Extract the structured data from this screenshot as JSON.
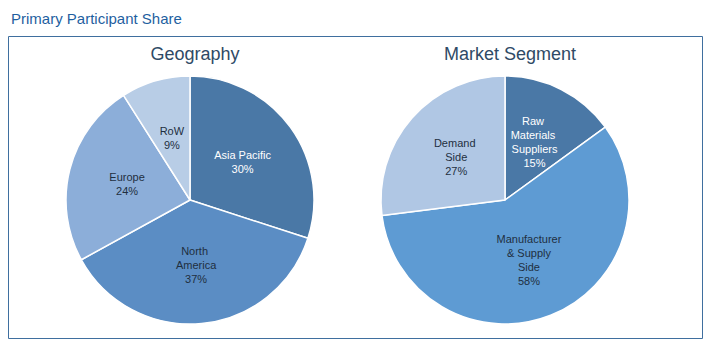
{
  "title": "Primary Participant Share",
  "chart_data": [
    {
      "type": "pie",
      "title": "Geography",
      "categories": [
        "Asia Pacific",
        "North America",
        "Europe",
        "RoW"
      ],
      "values": [
        30,
        37,
        24,
        9
      ],
      "value_labels": [
        "30%",
        "37%",
        "24%",
        "9%"
      ],
      "colors": [
        "#4a78a6",
        "#5b8dc4",
        "#8caed9",
        "#b8cde6"
      ],
      "data_labels": true
    },
    {
      "type": "pie",
      "title": "Market Segment",
      "categories": [
        "Raw Materials Suppliers",
        "Manufacturer & Supply Side",
        "Demand Side"
      ],
      "values": [
        15,
        58,
        27
      ],
      "value_labels": [
        "15%",
        "58%",
        "27%"
      ],
      "colors": [
        "#4a78a6",
        "#5e9bd3",
        "#b0c7e4"
      ],
      "data_labels": true
    }
  ]
}
